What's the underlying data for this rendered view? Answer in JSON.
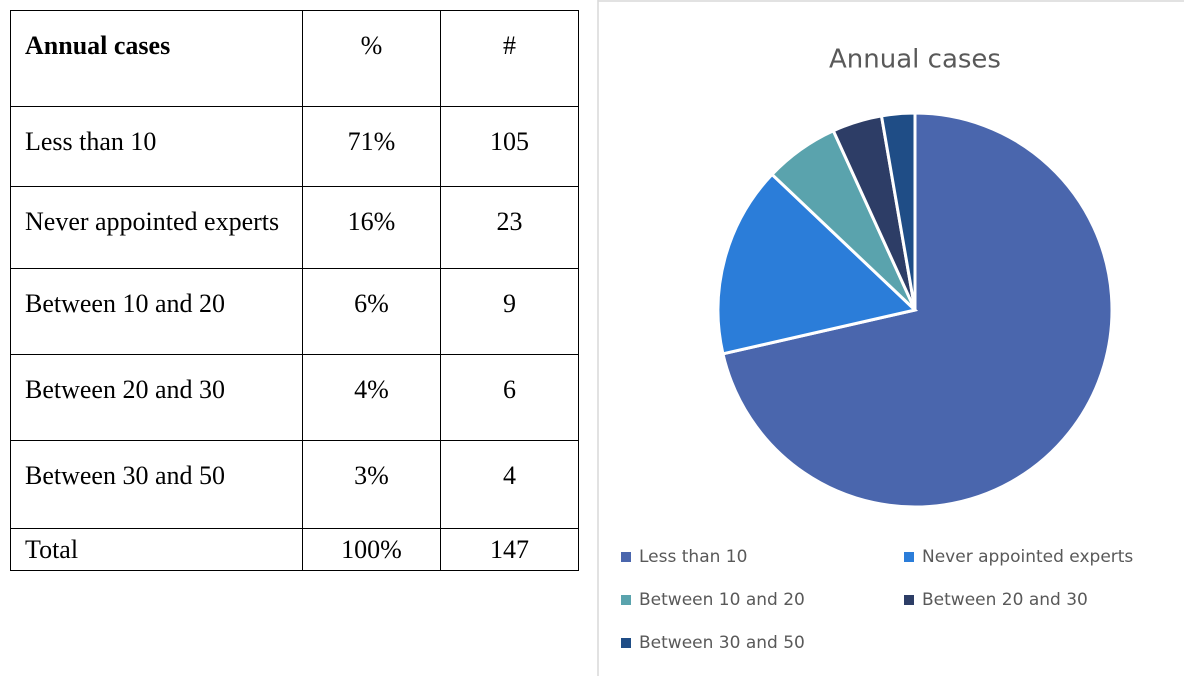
{
  "table": {
    "header": [
      "Annual cases",
      "%",
      "#"
    ],
    "rows": [
      [
        "Less than 10",
        "71%",
        "105"
      ],
      [
        "Never appointed experts",
        "16%",
        "23"
      ],
      [
        "Between 10 and 20",
        "6%",
        "9"
      ],
      [
        "Between 20 and 30",
        "4%",
        "6"
      ],
      [
        "Between 30 and 50",
        "3%",
        "4"
      ],
      [
        "Total",
        "100%",
        "147"
      ]
    ]
  },
  "chart_data": {
    "type": "pie",
    "title": "Annual cases",
    "categories": [
      "Less than 10",
      "Never appointed experts",
      "Between 10 and 20",
      "Between 20 and 30",
      "Between 30 and 50"
    ],
    "values": [
      105,
      23,
      9,
      6,
      4
    ],
    "colors": [
      "#4a66ad",
      "#2b7dd9",
      "#5aa3ad",
      "#2d3d66",
      "#1f4d86"
    ],
    "legend": "bottom"
  }
}
